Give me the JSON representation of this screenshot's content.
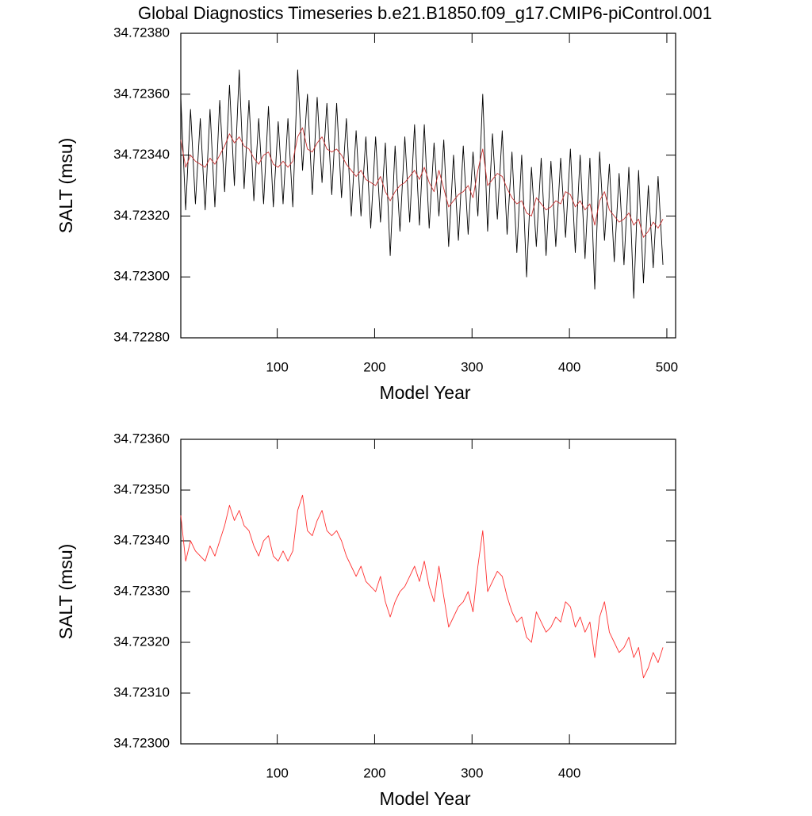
{
  "chart_data": [
    {
      "type": "line",
      "title": "Global Diagnostics Timeseries b.e21.B1850.f09_g17.CMIP6-piControl.001",
      "xlabel": "Model Year",
      "ylabel": "SALT (msu)",
      "xlim": [
        1,
        509
      ],
      "xticks": [
        100,
        200,
        300,
        400,
        500
      ],
      "ylim": [
        34.7228,
        34.7238
      ],
      "yticks": [
        {
          "value": 34.7228,
          "label": "34.72280"
        },
        {
          "value": 34.723,
          "label": "34.72300"
        },
        {
          "value": 34.7232,
          "label": "34.72320"
        },
        {
          "value": 34.7234,
          "label": "34.72340"
        },
        {
          "value": 34.7236,
          "label": "34.72360"
        },
        {
          "value": 34.7238,
          "label": "34.72380"
        }
      ],
      "x": [
        1,
        6,
        11,
        16,
        21,
        26,
        31,
        36,
        41,
        46,
        51,
        56,
        61,
        66,
        71,
        76,
        81,
        86,
        91,
        96,
        101,
        106,
        111,
        116,
        121,
        126,
        131,
        136,
        141,
        146,
        151,
        156,
        161,
        166,
        171,
        176,
        181,
        186,
        191,
        196,
        201,
        206,
        211,
        216,
        221,
        226,
        231,
        236,
        241,
        246,
        251,
        256,
        261,
        266,
        271,
        276,
        281,
        286,
        291,
        296,
        301,
        306,
        311,
        316,
        321,
        326,
        331,
        336,
        341,
        346,
        351,
        356,
        361,
        366,
        371,
        376,
        381,
        386,
        391,
        396,
        401,
        406,
        411,
        416,
        421,
        426,
        431,
        436,
        441,
        446,
        451,
        456,
        461,
        466,
        471,
        476,
        481,
        486,
        491,
        496
      ],
      "series": [
        {
          "color": "#000000",
          "values": [
            34.72359,
            34.72322,
            34.72355,
            34.72324,
            34.72352,
            34.72322,
            34.72355,
            34.72323,
            34.72358,
            34.72328,
            34.72363,
            34.7233,
            34.72368,
            34.72329,
            34.72358,
            34.72325,
            34.72352,
            34.72324,
            34.72356,
            34.72323,
            34.72351,
            34.72324,
            34.72352,
            34.72323,
            34.72368,
            34.72335,
            34.7236,
            34.72327,
            34.72359,
            34.72331,
            34.72357,
            34.72327,
            34.72357,
            34.72326,
            34.72352,
            34.7232,
            34.72348,
            34.7232,
            34.72346,
            34.72316,
            34.72346,
            34.72318,
            34.72344,
            34.72307,
            34.72343,
            34.72315,
            34.72346,
            34.72318,
            34.7235,
            34.72317,
            34.7235,
            34.72316,
            34.72344,
            34.7232,
            34.72345,
            34.7231,
            34.7234,
            34.72312,
            34.72343,
            34.72314,
            34.72341,
            34.7232,
            34.7236,
            34.72315,
            34.72347,
            34.72319,
            34.72348,
            34.72314,
            34.72341,
            34.72308,
            34.7234,
            34.723,
            34.72336,
            34.7231,
            34.72339,
            34.72307,
            34.72338,
            34.7231,
            34.72339,
            34.72313,
            34.72342,
            34.72308,
            34.7234,
            34.72306,
            34.72339,
            34.72296,
            34.72341,
            34.72312,
            34.72337,
            34.72305,
            34.72334,
            34.72304,
            34.72336,
            34.72293,
            34.72335,
            34.72298,
            34.7233,
            34.72303,
            34.72333,
            34.72304
          ]
        },
        {
          "color": "#c83232",
          "values": [
            34.72345,
            34.72336,
            34.7234,
            34.72338,
            34.72337,
            34.72336,
            34.72339,
            34.72337,
            34.7234,
            34.72343,
            34.72347,
            34.72344,
            34.72346,
            34.72343,
            34.72342,
            34.72339,
            34.72337,
            34.7234,
            34.72341,
            34.72337,
            34.72336,
            34.72338,
            34.72336,
            34.72338,
            34.72346,
            34.72349,
            34.72342,
            34.72341,
            34.72344,
            34.72346,
            34.72342,
            34.72341,
            34.72342,
            34.7234,
            34.72337,
            34.72335,
            34.72333,
            34.72335,
            34.72332,
            34.72331,
            34.7233,
            34.72333,
            34.72328,
            34.72325,
            34.72328,
            34.7233,
            34.72331,
            34.72333,
            34.72335,
            34.72332,
            34.72336,
            34.72331,
            34.72328,
            34.72335,
            34.72329,
            34.72323,
            34.72325,
            34.72327,
            34.72328,
            34.7233,
            34.72326,
            34.72335,
            34.72342,
            34.7233,
            34.72332,
            34.72334,
            34.72333,
            34.72329,
            34.72326,
            34.72324,
            34.72325,
            34.72321,
            34.7232,
            34.72326,
            34.72324,
            34.72322,
            34.72323,
            34.72325,
            34.72324,
            34.72328,
            34.72327,
            34.72323,
            34.72325,
            34.72322,
            34.72324,
            34.72317,
            34.72325,
            34.72328,
            34.72322,
            34.7232,
            34.72318,
            34.72319,
            34.72321,
            34.72317,
            34.72319,
            34.72313,
            34.72315,
            34.72318,
            34.72316,
            34.72319
          ]
        }
      ]
    },
    {
      "type": "line",
      "xlabel": "Model Year",
      "ylabel": "SALT (msu)",
      "xlim": [
        1,
        509
      ],
      "xticks": [
        100,
        200,
        300,
        400
      ],
      "ylim": [
        34.723,
        34.7236
      ],
      "yticks": [
        {
          "value": 34.723,
          "label": "34.72300"
        },
        {
          "value": 34.7231,
          "label": "34.72310"
        },
        {
          "value": 34.7232,
          "label": "34.72320"
        },
        {
          "value": 34.7233,
          "label": "34.72330"
        },
        {
          "value": 34.7234,
          "label": "34.72340"
        },
        {
          "value": 34.7235,
          "label": "34.72350"
        },
        {
          "value": 34.7236,
          "label": "34.72360"
        }
      ],
      "x": [
        1,
        6,
        11,
        16,
        21,
        26,
        31,
        36,
        41,
        46,
        51,
        56,
        61,
        66,
        71,
        76,
        81,
        86,
        91,
        96,
        101,
        106,
        111,
        116,
        121,
        126,
        131,
        136,
        141,
        146,
        151,
        156,
        161,
        166,
        171,
        176,
        181,
        186,
        191,
        196,
        201,
        206,
        211,
        216,
        221,
        226,
        231,
        236,
        241,
        246,
        251,
        256,
        261,
        266,
        271,
        276,
        281,
        286,
        291,
        296,
        301,
        306,
        311,
        316,
        321,
        326,
        331,
        336,
        341,
        346,
        351,
        356,
        361,
        366,
        371,
        376,
        381,
        386,
        391,
        396,
        401,
        406,
        411,
        416,
        421,
        426,
        431,
        436,
        441,
        446,
        451,
        456,
        461,
        466,
        471,
        476,
        481,
        486,
        491,
        496
      ],
      "series": [
        {
          "color": "#ff3030",
          "values": [
            34.72345,
            34.72336,
            34.7234,
            34.72338,
            34.72337,
            34.72336,
            34.72339,
            34.72337,
            34.7234,
            34.72343,
            34.72347,
            34.72344,
            34.72346,
            34.72343,
            34.72342,
            34.72339,
            34.72337,
            34.7234,
            34.72341,
            34.72337,
            34.72336,
            34.72338,
            34.72336,
            34.72338,
            34.72346,
            34.72349,
            34.72342,
            34.72341,
            34.72344,
            34.72346,
            34.72342,
            34.72341,
            34.72342,
            34.7234,
            34.72337,
            34.72335,
            34.72333,
            34.72335,
            34.72332,
            34.72331,
            34.7233,
            34.72333,
            34.72328,
            34.72325,
            34.72328,
            34.7233,
            34.72331,
            34.72333,
            34.72335,
            34.72332,
            34.72336,
            34.72331,
            34.72328,
            34.72335,
            34.72329,
            34.72323,
            34.72325,
            34.72327,
            34.72328,
            34.7233,
            34.72326,
            34.72335,
            34.72342,
            34.7233,
            34.72332,
            34.72334,
            34.72333,
            34.72329,
            34.72326,
            34.72324,
            34.72325,
            34.72321,
            34.7232,
            34.72326,
            34.72324,
            34.72322,
            34.72323,
            34.72325,
            34.72324,
            34.72328,
            34.72327,
            34.72323,
            34.72325,
            34.72322,
            34.72324,
            34.72317,
            34.72325,
            34.72328,
            34.72322,
            34.7232,
            34.72318,
            34.72319,
            34.72321,
            34.72317,
            34.72319,
            34.72313,
            34.72315,
            34.72318,
            34.72316,
            34.72319
          ]
        }
      ]
    }
  ]
}
